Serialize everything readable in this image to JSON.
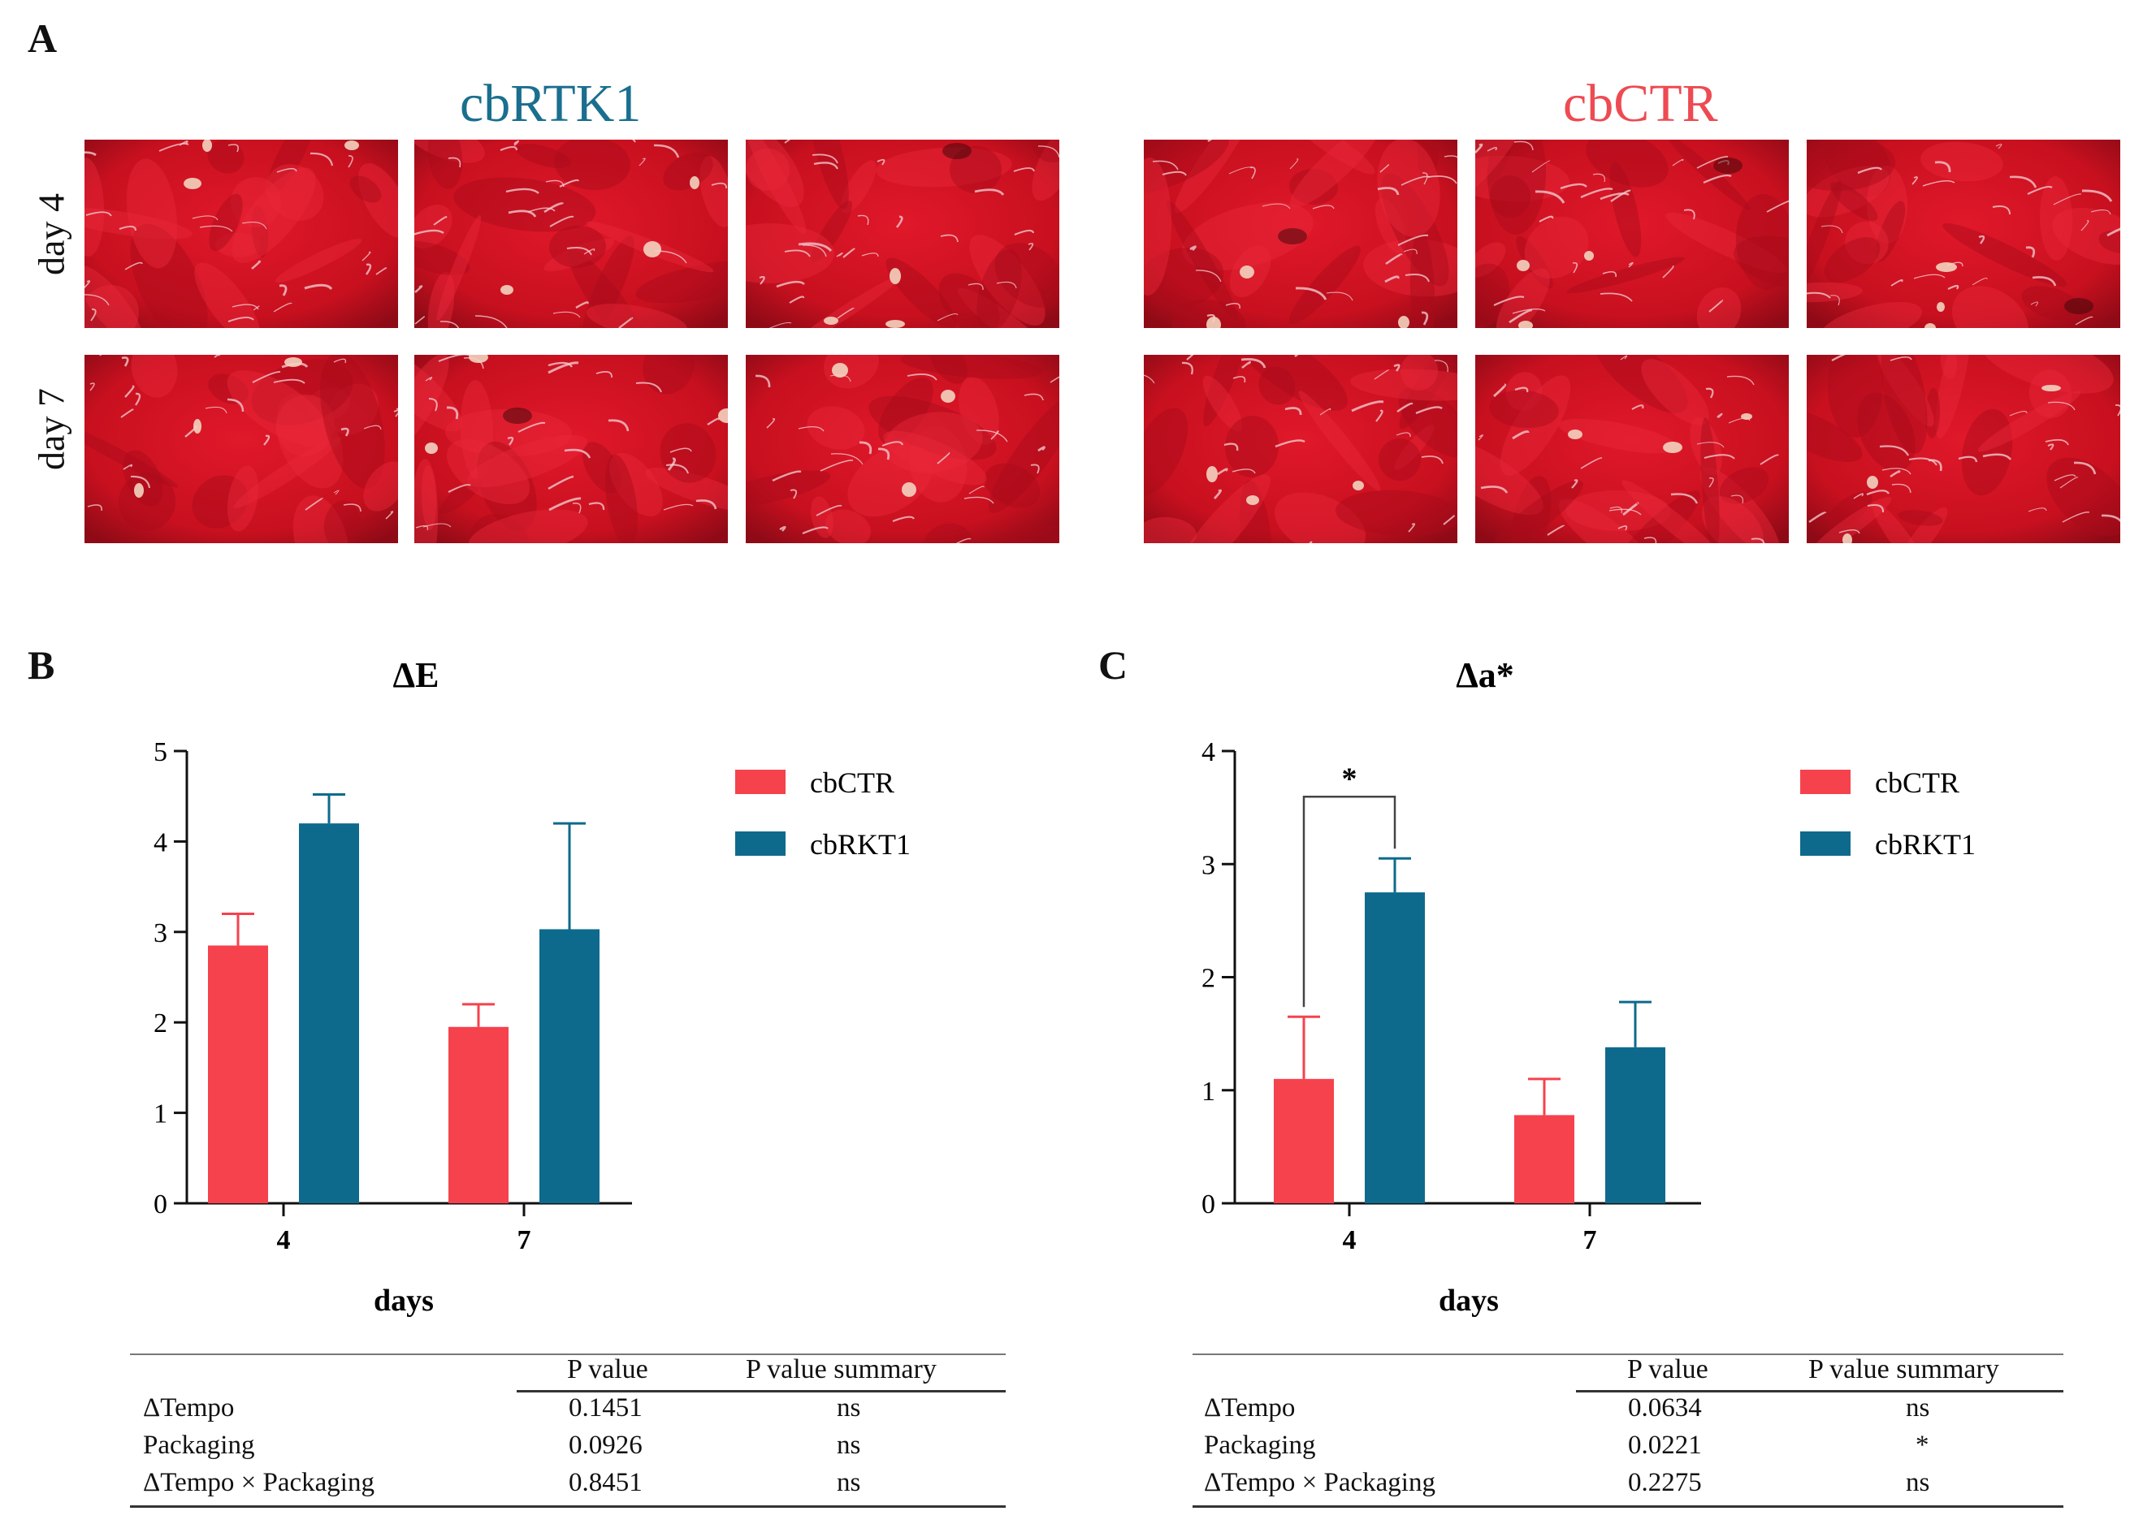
{
  "panel_a": {
    "letter": "A",
    "groups": [
      {
        "title": "cbRTK1",
        "color": "#1a6f8e"
      },
      {
        "title": "cbCTR",
        "color": "#ee4a52"
      }
    ],
    "rows": [
      "day 4",
      "day 7"
    ]
  },
  "chart_data": [
    {
      "panel": "B",
      "type": "bar",
      "title": "ΔE",
      "xlabel": "days",
      "ylabel": "",
      "categories": [
        "4",
        "7"
      ],
      "ylim": [
        0,
        5
      ],
      "yticks": [
        0,
        1,
        2,
        3,
        4,
        5
      ],
      "legend_position": "right",
      "series": [
        {
          "name": "cbCTR",
          "color": "#f5424d",
          "values": [
            2.85,
            1.95
          ],
          "errors": [
            0.35,
            0.25
          ]
        },
        {
          "name": "cbRKT1",
          "color": "#0e6a8c",
          "values": [
            4.2,
            3.03
          ],
          "errors": [
            0.32,
            1.17
          ]
        }
      ],
      "significance": [],
      "stats_table": {
        "headers": [
          "",
          "P value",
          "P value summary"
        ],
        "rows": [
          [
            "ΔTempo",
            "0.1451",
            "ns"
          ],
          [
            "Packaging",
            "0.0926",
            "ns"
          ],
          [
            "ΔTempo × Packaging",
            "0.8451",
            "ns"
          ]
        ]
      }
    },
    {
      "panel": "C",
      "type": "bar",
      "title": "Δa*",
      "xlabel": "days",
      "ylabel": "",
      "categories": [
        "4",
        "7"
      ],
      "ylim": [
        0,
        4
      ],
      "yticks": [
        0,
        1,
        2,
        3,
        4
      ],
      "legend_position": "right",
      "series": [
        {
          "name": "cbCTR",
          "color": "#f5424d",
          "values": [
            1.1,
            0.78
          ],
          "errors": [
            0.55,
            0.32
          ]
        },
        {
          "name": "cbRKT1",
          "color": "#0e6a8c",
          "values": [
            2.75,
            1.38
          ],
          "errors": [
            0.3,
            0.4
          ]
        }
      ],
      "significance": [
        {
          "category": "4",
          "label": "*"
        }
      ],
      "stats_table": {
        "headers": [
          "",
          "P value",
          "P value summary"
        ],
        "rows": [
          [
            "ΔTempo",
            "0.0634",
            "ns"
          ],
          [
            "Packaging",
            "0.0221",
            "*"
          ],
          [
            "ΔTempo × Packaging",
            "0.2275",
            "ns"
          ]
        ]
      }
    }
  ]
}
